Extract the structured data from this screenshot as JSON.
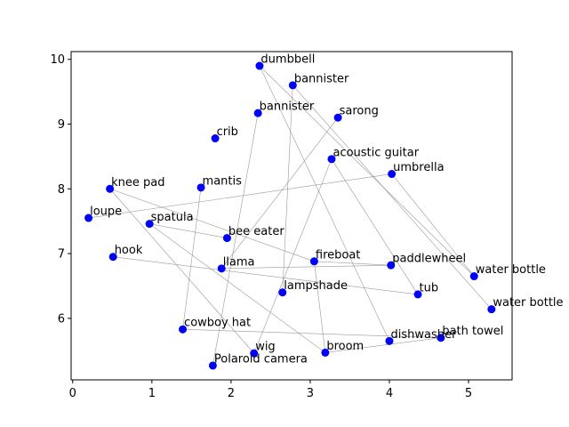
{
  "chart_data": {
    "type": "scatter",
    "title": "",
    "xlabel": "",
    "ylabel": "",
    "xlim": [
      -0.02,
      5.55
    ],
    "ylim": [
      5.05,
      10.12
    ],
    "xticks": [
      0,
      1,
      2,
      3,
      4,
      5
    ],
    "yticks": [
      6,
      7,
      8,
      9,
      10
    ],
    "grid": false,
    "point_color": "#0000ff",
    "line_color": "#888888",
    "points": [
      {
        "label": "dumbbell",
        "x": 2.36,
        "y": 9.9
      },
      {
        "label": "bannister",
        "x": 2.78,
        "y": 9.6
      },
      {
        "label": "bannister",
        "x": 2.34,
        "y": 9.17
      },
      {
        "label": "sarong",
        "x": 3.35,
        "y": 9.1
      },
      {
        "label": "crib",
        "x": 1.8,
        "y": 8.78
      },
      {
        "label": "acoustic guitar",
        "x": 3.27,
        "y": 8.46
      },
      {
        "label": "umbrella",
        "x": 4.03,
        "y": 8.23
      },
      {
        "label": "knee pad",
        "x": 0.47,
        "y": 8.0
      },
      {
        "label": "mantis",
        "x": 1.62,
        "y": 8.02
      },
      {
        "label": "loupe",
        "x": 0.2,
        "y": 7.55
      },
      {
        "label": "spatula",
        "x": 0.97,
        "y": 7.46
      },
      {
        "label": "bee eater",
        "x": 1.95,
        "y": 7.24
      },
      {
        "label": "hook",
        "x": 0.51,
        "y": 6.95
      },
      {
        "label": "fireboat",
        "x": 3.05,
        "y": 6.88
      },
      {
        "label": "paddlewheel",
        "x": 4.02,
        "y": 6.82
      },
      {
        "label": "llama",
        "x": 1.88,
        "y": 6.77
      },
      {
        "label": "water bottle",
        "x": 5.07,
        "y": 6.65
      },
      {
        "label": "lampshade",
        "x": 2.65,
        "y": 6.4
      },
      {
        "label": "tub",
        "x": 4.36,
        "y": 6.37
      },
      {
        "label": "water bottle",
        "x": 5.29,
        "y": 6.14
      },
      {
        "label": "cowboy hat",
        "x": 1.39,
        "y": 5.83
      },
      {
        "label": "bath towel",
        "x": 4.65,
        "y": 5.7
      },
      {
        "label": "dishwasher",
        "x": 4.0,
        "y": 5.65
      },
      {
        "label": "wig",
        "x": 2.29,
        "y": 5.46
      },
      {
        "label": "broom",
        "x": 3.19,
        "y": 5.47
      },
      {
        "label": "Polaroid camera",
        "x": 1.77,
        "y": 5.27
      }
    ],
    "connections": [
      [
        "dumbbell",
        "water bottle"
      ],
      [
        "dumbbell",
        "dishwasher"
      ],
      [
        "bannister",
        "water bottle#2"
      ],
      [
        "bannister",
        "lampshade"
      ],
      [
        "bannister#2",
        "Polaroid camera"
      ],
      [
        "sarong",
        "llama"
      ],
      [
        "umbrella",
        "water bottle"
      ],
      [
        "umbrella",
        "loupe"
      ],
      [
        "acoustic guitar",
        "wig"
      ],
      [
        "acoustic guitar",
        "tub"
      ],
      [
        "knee pad",
        "wig"
      ],
      [
        "knee pad",
        "fireboat"
      ],
      [
        "mantis",
        "cowboy hat"
      ],
      [
        "spatula",
        "bee eater"
      ],
      [
        "spatula",
        "broom"
      ],
      [
        "hook",
        "tub"
      ],
      [
        "fireboat",
        "paddlewheel"
      ],
      [
        "llama",
        "paddlewheel"
      ],
      [
        "cowboy hat",
        "bath towel"
      ],
      [
        "broom",
        "bath towel"
      ],
      [
        "broom",
        "fireboat"
      ]
    ]
  }
}
